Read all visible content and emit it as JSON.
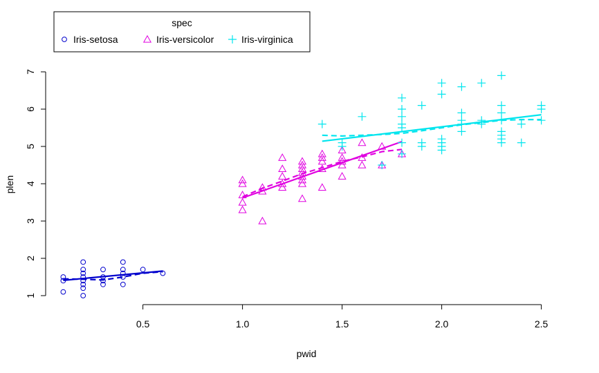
{
  "chart_data": {
    "type": "scatter",
    "xlabel": "pwid",
    "ylabel": "plen",
    "xlim": [
      0.05,
      2.55
    ],
    "ylim": [
      1.0,
      7.0
    ],
    "x_ticks": [
      "0.5",
      "1.0",
      "1.5",
      "2.0",
      "2.5"
    ],
    "y_ticks": [
      "1",
      "2",
      "3",
      "4",
      "5",
      "6",
      "7"
    ],
    "legend": {
      "title": "spec",
      "placement": "top-left (outside plot)"
    },
    "series": [
      {
        "name": "Iris-setosa",
        "color": "#0000CD",
        "marker": "circle",
        "points": [
          [
            0.1,
            1.5
          ],
          [
            0.1,
            1.4
          ],
          [
            0.1,
            1.1
          ],
          [
            0.2,
            1.0
          ],
          [
            0.2,
            1.2
          ],
          [
            0.2,
            1.3
          ],
          [
            0.2,
            1.4
          ],
          [
            0.2,
            1.5
          ],
          [
            0.2,
            1.6
          ],
          [
            0.2,
            1.7
          ],
          [
            0.2,
            1.9
          ],
          [
            0.3,
            1.3
          ],
          [
            0.3,
            1.4
          ],
          [
            0.3,
            1.5
          ],
          [
            0.3,
            1.7
          ],
          [
            0.4,
            1.3
          ],
          [
            0.4,
            1.5
          ],
          [
            0.4,
            1.6
          ],
          [
            0.4,
            1.7
          ],
          [
            0.4,
            1.9
          ],
          [
            0.5,
            1.7
          ],
          [
            0.6,
            1.6
          ]
        ],
        "fit_line": [
          [
            0.1,
            1.41
          ],
          [
            0.6,
            1.66
          ]
        ],
        "smooth_line": [
          [
            0.1,
            1.45
          ],
          [
            0.2,
            1.44
          ],
          [
            0.3,
            1.42
          ],
          [
            0.4,
            1.5
          ],
          [
            0.5,
            1.6
          ],
          [
            0.6,
            1.64
          ]
        ]
      },
      {
        "name": "Iris-versicolor",
        "color": "#E000E0",
        "marker": "triangle",
        "points": [
          [
            1.0,
            3.3
          ],
          [
            1.0,
            3.5
          ],
          [
            1.0,
            3.7
          ],
          [
            1.0,
            4.0
          ],
          [
            1.0,
            4.1
          ],
          [
            1.1,
            3.0
          ],
          [
            1.1,
            3.8
          ],
          [
            1.1,
            3.9
          ],
          [
            1.2,
            3.9
          ],
          [
            1.2,
            4.0
          ],
          [
            1.2,
            4.2
          ],
          [
            1.2,
            4.4
          ],
          [
            1.2,
            4.7
          ],
          [
            1.3,
            3.6
          ],
          [
            1.3,
            4.0
          ],
          [
            1.3,
            4.1
          ],
          [
            1.3,
            4.2
          ],
          [
            1.3,
            4.3
          ],
          [
            1.3,
            4.4
          ],
          [
            1.3,
            4.5
          ],
          [
            1.3,
            4.6
          ],
          [
            1.4,
            3.9
          ],
          [
            1.4,
            4.4
          ],
          [
            1.4,
            4.6
          ],
          [
            1.4,
            4.7
          ],
          [
            1.4,
            4.8
          ],
          [
            1.5,
            4.2
          ],
          [
            1.5,
            4.5
          ],
          [
            1.5,
            4.6
          ],
          [
            1.5,
            4.7
          ],
          [
            1.5,
            4.9
          ],
          [
            1.6,
            4.5
          ],
          [
            1.6,
            4.7
          ],
          [
            1.6,
            5.1
          ],
          [
            1.7,
            4.5
          ],
          [
            1.7,
            5.0
          ],
          [
            1.8,
            4.8
          ]
        ],
        "fit_line": [
          [
            1.0,
            3.62
          ],
          [
            1.8,
            5.13
          ]
        ],
        "smooth_line": [
          [
            1.0,
            3.65
          ],
          [
            1.1,
            3.88
          ],
          [
            1.2,
            4.07
          ],
          [
            1.3,
            4.27
          ],
          [
            1.4,
            4.43
          ],
          [
            1.5,
            4.6
          ],
          [
            1.6,
            4.72
          ],
          [
            1.7,
            4.86
          ],
          [
            1.8,
            4.92
          ]
        ]
      },
      {
        "name": "Iris-virginica",
        "color": "#00E5EE",
        "marker": "plus",
        "points": [
          [
            1.4,
            5.6
          ],
          [
            1.5,
            5.0
          ],
          [
            1.5,
            5.1
          ],
          [
            1.6,
            5.8
          ],
          [
            1.7,
            4.5
          ],
          [
            1.8,
            4.8
          ],
          [
            1.8,
            5.1
          ],
          [
            1.8,
            5.5
          ],
          [
            1.8,
            5.6
          ],
          [
            1.8,
            5.8
          ],
          [
            1.8,
            6.0
          ],
          [
            1.8,
            6.3
          ],
          [
            1.9,
            5.0
          ],
          [
            1.9,
            5.1
          ],
          [
            1.9,
            6.1
          ],
          [
            2.0,
            4.9
          ],
          [
            2.0,
            5.0
          ],
          [
            2.0,
            5.1
          ],
          [
            2.0,
            5.2
          ],
          [
            2.0,
            6.4
          ],
          [
            2.0,
            6.7
          ],
          [
            2.1,
            5.4
          ],
          [
            2.1,
            5.6
          ],
          [
            2.1,
            5.7
          ],
          [
            2.1,
            5.9
          ],
          [
            2.1,
            6.6
          ],
          [
            2.2,
            5.6
          ],
          [
            2.2,
            5.7
          ],
          [
            2.2,
            6.7
          ],
          [
            2.3,
            5.1
          ],
          [
            2.3,
            5.2
          ],
          [
            2.3,
            5.3
          ],
          [
            2.3,
            5.4
          ],
          [
            2.3,
            5.7
          ],
          [
            2.3,
            5.9
          ],
          [
            2.3,
            6.1
          ],
          [
            2.3,
            6.9
          ],
          [
            2.4,
            5.1
          ],
          [
            2.4,
            5.6
          ],
          [
            2.5,
            5.7
          ],
          [
            2.5,
            6.0
          ],
          [
            2.5,
            6.1
          ]
        ],
        "fit_line": [
          [
            1.4,
            5.14
          ],
          [
            2.5,
            5.85
          ]
        ],
        "smooth_line": [
          [
            1.4,
            5.3
          ],
          [
            1.5,
            5.28
          ],
          [
            1.6,
            5.3
          ],
          [
            1.7,
            5.32
          ],
          [
            1.8,
            5.35
          ],
          [
            1.9,
            5.42
          ],
          [
            2.0,
            5.5
          ],
          [
            2.1,
            5.58
          ],
          [
            2.2,
            5.64
          ],
          [
            2.3,
            5.7
          ],
          [
            2.4,
            5.72
          ],
          [
            2.5,
            5.72
          ]
        ]
      }
    ]
  }
}
